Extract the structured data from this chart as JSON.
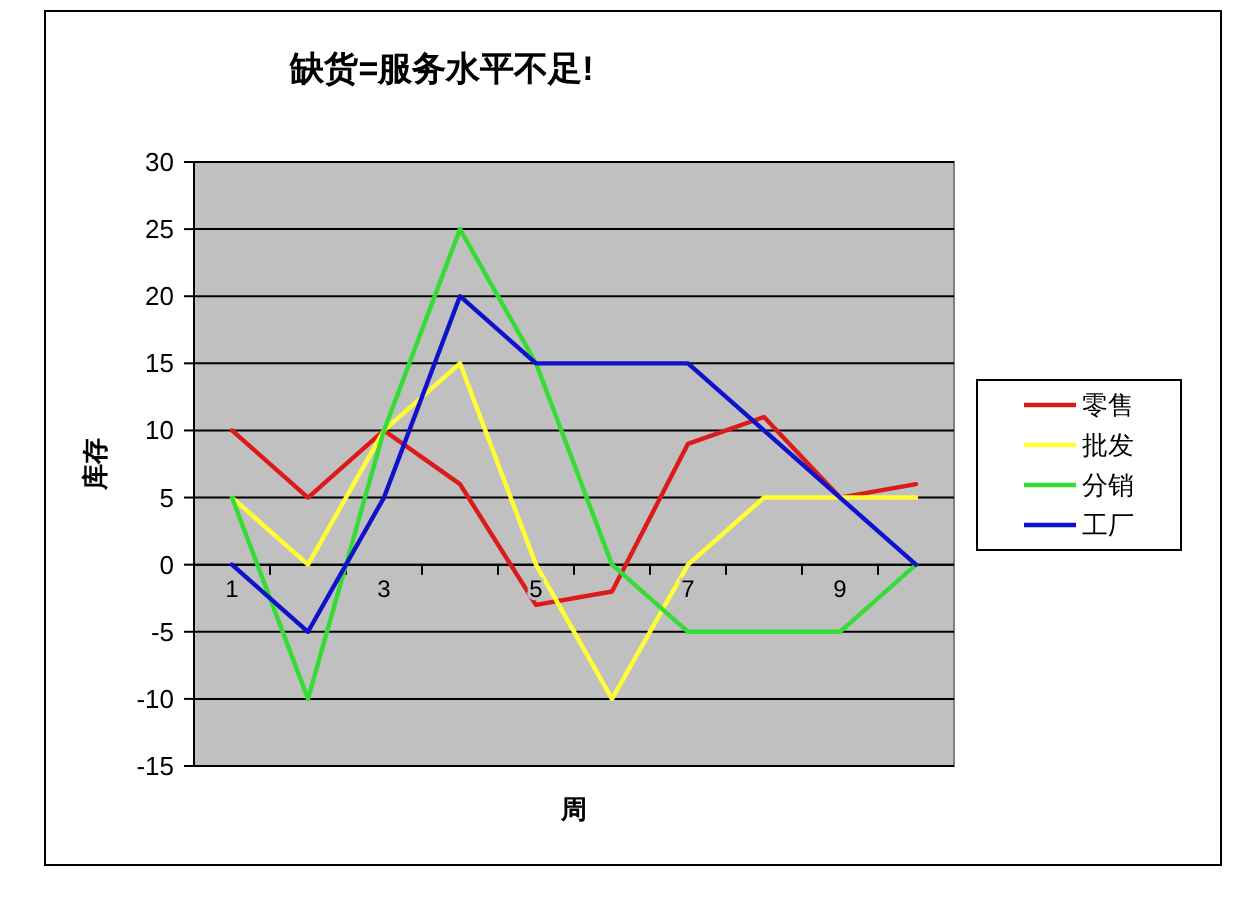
{
  "chart_data": {
    "type": "line",
    "title": "缺货=服务水平不足!",
    "xlabel": "周",
    "ylabel": "库存",
    "categories": [
      "1",
      null,
      "3",
      null,
      "5",
      null,
      "7",
      null,
      "9",
      null
    ],
    "series": [
      {
        "name": "零售",
        "color": "#dd1a1a",
        "values": [
          10,
          5,
          10,
          6,
          -3,
          -2,
          9,
          11,
          5,
          6
        ]
      },
      {
        "name": "批发",
        "color": "#ffff33",
        "values": [
          5,
          0,
          10,
          15,
          0,
          -10,
          0,
          5,
          5,
          5
        ]
      },
      {
        "name": "分销",
        "color": "#33dd33",
        "values": [
          5,
          -10,
          10,
          25,
          15,
          0,
          -5,
          -5,
          -5,
          0
        ]
      },
      {
        "name": "工厂",
        "color": "#1111cc",
        "values": [
          0,
          -5,
          5,
          20,
          15,
          15,
          15,
          10,
          5,
          0
        ]
      }
    ],
    "ylim": [
      -15,
      30
    ],
    "yticks": [
      -15,
      -10,
      -5,
      0,
      5,
      10,
      15,
      20,
      25,
      30
    ],
    "grid": "y",
    "legend": "right",
    "line_style": "solid"
  }
}
